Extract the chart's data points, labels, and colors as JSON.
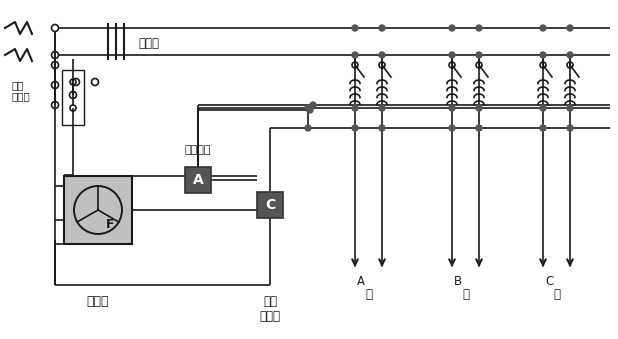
{
  "background_color": "#ffffff",
  "line_color": "#1a1a1a",
  "labels": {
    "henryuki": "変流器",
    "hibiki": "音響装置",
    "jushiki": "受信機",
    "senyou": "専用\n開閉器",
    "hikomi": "引込\n接続点",
    "tou": "棵",
    "A_box": "A",
    "C_box": "C",
    "F_box": "F"
  },
  "figsize": [
    6.18,
    3.39
  ],
  "dpi": 100
}
